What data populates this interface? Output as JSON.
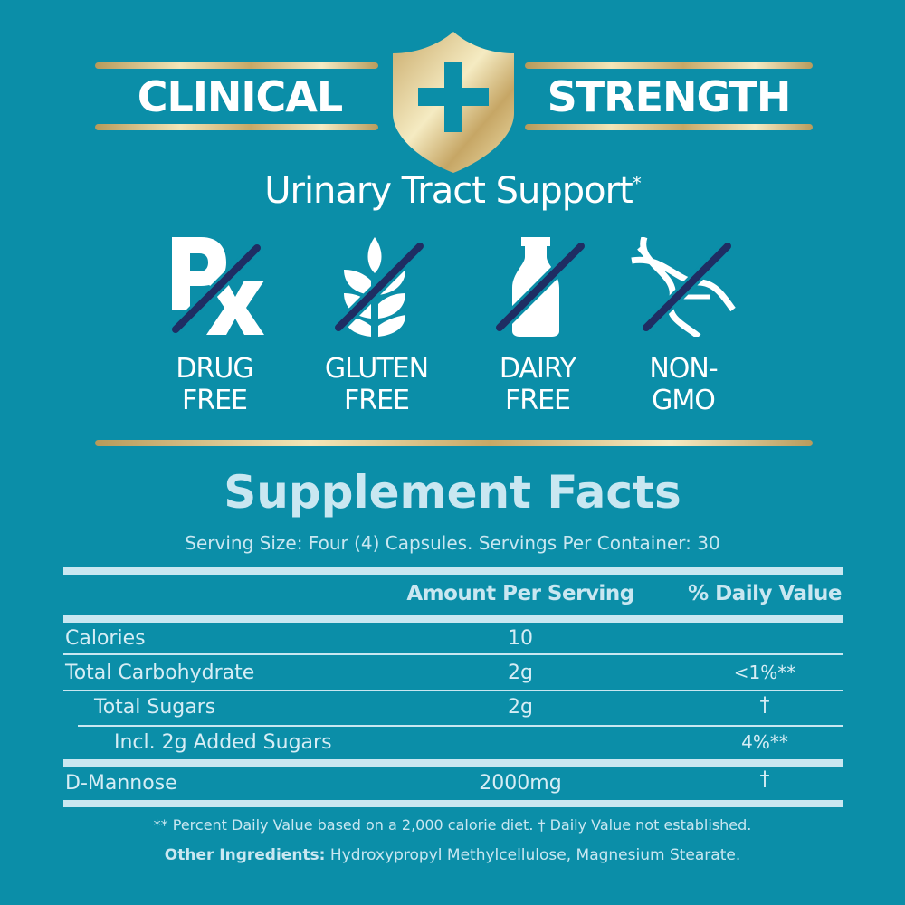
{
  "banner": {
    "left": "CLINICAL",
    "right": "STRENGTH",
    "emblem": "shield-plus-icon"
  },
  "subtitle": {
    "text": "Urinary Tract Support",
    "mark": "*"
  },
  "badges": [
    {
      "icon": "rx-crossed-icon",
      "line1": "DRUG",
      "line2": "FREE"
    },
    {
      "icon": "wheat-crossed-icon",
      "line1": "GLUTEN",
      "line2": "FREE"
    },
    {
      "icon": "milk-bottle-crossed-icon",
      "line1": "DAIRY",
      "line2": "FREE"
    },
    {
      "icon": "dna-crossed-icon",
      "line1": "NON-",
      "line2": "GMO"
    }
  ],
  "facts": {
    "title": "Supplement Facts",
    "serving": "Serving Size: Four (4) Capsules.  Servings Per Container: 30",
    "headers": {
      "amount": "Amount Per Serving",
      "dv": "% Daily Value"
    },
    "rows": [
      {
        "name": "Calories",
        "amount": "10",
        "dv": ""
      },
      {
        "name": "Total Carbohydrate",
        "amount": "2g",
        "dv": "<1%**"
      },
      {
        "name": "Total Sugars",
        "amount": "2g",
        "dv": "†"
      },
      {
        "name": "Incl. 2g Added Sugars",
        "amount": "",
        "dv": "4%**"
      },
      {
        "name": "D-Mannose",
        "amount": "2000mg",
        "dv": "†"
      }
    ],
    "footnote": "** Percent Daily Value based on a 2,000 calorie diet.  † Daily Value not established.",
    "other_label": "Other Ingredients:",
    "other_value": " Hydroxypropyl Methylcellulose, Magnesium Stearate."
  },
  "colors": {
    "background": "#0b8ea8",
    "gold": "#e8d59a",
    "light": "#c9e7f1",
    "strike": "#1f2d63"
  }
}
